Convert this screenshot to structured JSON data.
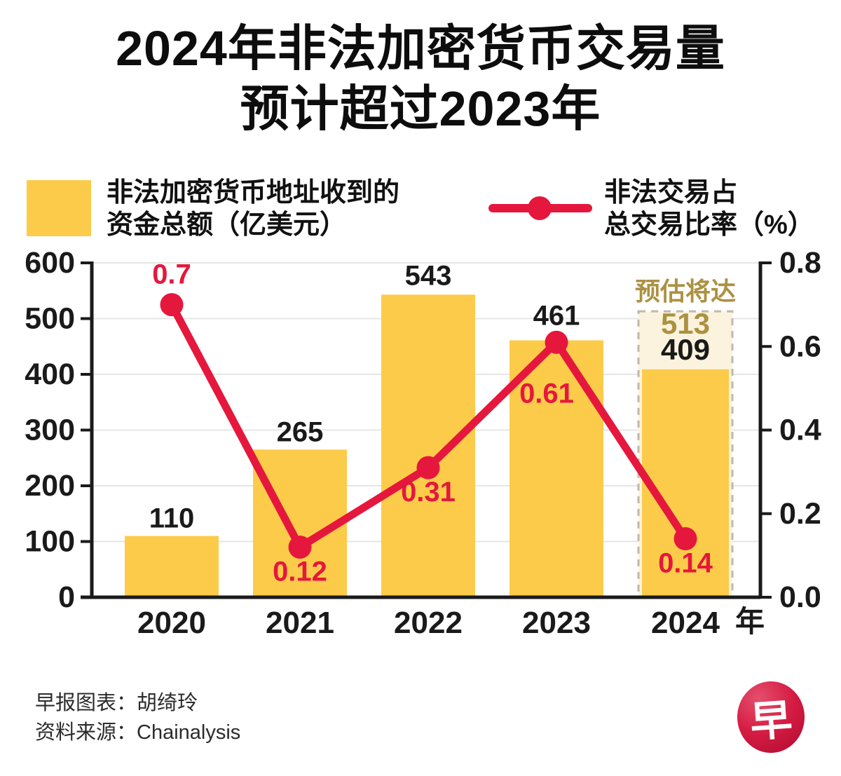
{
  "title": {
    "line1": "2024年非法加密货币交易量",
    "line2": "预计超过2023年"
  },
  "legend": {
    "bars": {
      "line1": "非法加密货币地址收到的",
      "line2": "资金总额（亿美元）"
    },
    "line": {
      "line1": "非法交易占",
      "line2": "总交易比率（%）"
    }
  },
  "colors": {
    "bar": "#FDCB4A",
    "line": "#E5173D",
    "forecast_fill": "#FBF3DD",
    "forecast_dash": "#C0B9A9",
    "forecast_text": "#AC9142",
    "grid": "#E6E6E6",
    "axis": "#1A1A1A",
    "label_dark": "#1A1A1A"
  },
  "chart_data": {
    "type": "bar",
    "categories": [
      "2020",
      "2021",
      "2022",
      "2023",
      "2024"
    ],
    "x_axis_suffix": "年",
    "series": [
      {
        "name": "非法加密货币地址收到的资金总额（亿美元）",
        "chart": "bar",
        "axis": "left",
        "values": [
          110,
          265,
          543,
          461,
          409
        ]
      },
      {
        "name": "非法交易占总交易比率（%）",
        "chart": "line",
        "axis": "right",
        "values": [
          0.7,
          0.12,
          0.31,
          0.61,
          0.14
        ],
        "label_positions": [
          "above",
          "below",
          "below",
          "far-below",
          "below"
        ]
      }
    ],
    "forecast": {
      "category": "2024",
      "label": "预估将达",
      "value": 513,
      "base_value": 409
    },
    "left_axis": {
      "min": 0,
      "max": 600,
      "step": 100,
      "ticks": [
        "600",
        "500",
        "400",
        "300",
        "200",
        "100",
        "0"
      ]
    },
    "right_axis": {
      "min": 0,
      "max": 0.8,
      "step": 0.2,
      "ticks": [
        "0.8",
        "0.6",
        "0.4",
        "0.2",
        "0.0"
      ]
    },
    "grid": true,
    "legend_position": "top"
  },
  "footer": {
    "credit": "早报图表：胡绮玲",
    "source": "资料来源：Chainalysis",
    "logo_char": "早"
  }
}
